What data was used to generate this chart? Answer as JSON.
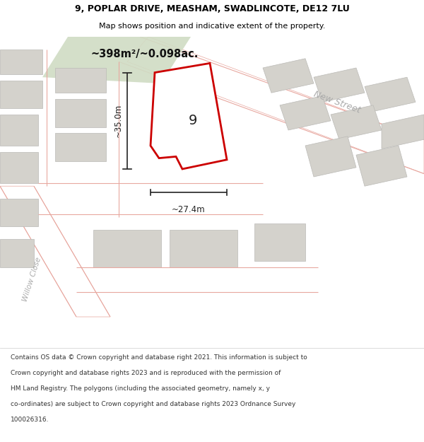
{
  "title_line1": "9, POPLAR DRIVE, MEASHAM, SWADLINCOTE, DE12 7LU",
  "title_line2": "Map shows position and indicative extent of the property.",
  "footer_lines": [
    "Contains OS data © Crown copyright and database right 2021. This information is subject to",
    "Crown copyright and database rights 2023 and is reproduced with the permission of",
    "HM Land Registry. The polygons (including the associated geometry, namely x, y",
    "co-ordinates) are subject to Crown copyright and database rights 2023 Ordnance Survey",
    "100026316."
  ],
  "area_label": "~398m²/~0.098ac.",
  "width_label": "~27.4m",
  "height_label": "~35.0m",
  "number_label": "9",
  "street_label": "New Street",
  "road_label": "Willow Close",
  "map_bg": "#eeece8",
  "building_fill": "#d4d2cc",
  "building_stroke": "#bbbaB6",
  "road_fill": "#ffffff",
  "road_stroke": "#e8a8a0",
  "green_fill": "#d0dcc4",
  "plot_stroke": "#cc0000",
  "plot_fill": "#ffffff",
  "dim_color": "#222222",
  "title_color": "#000000",
  "footer_color": "#333333",
  "street_color": "#aaaaaa"
}
